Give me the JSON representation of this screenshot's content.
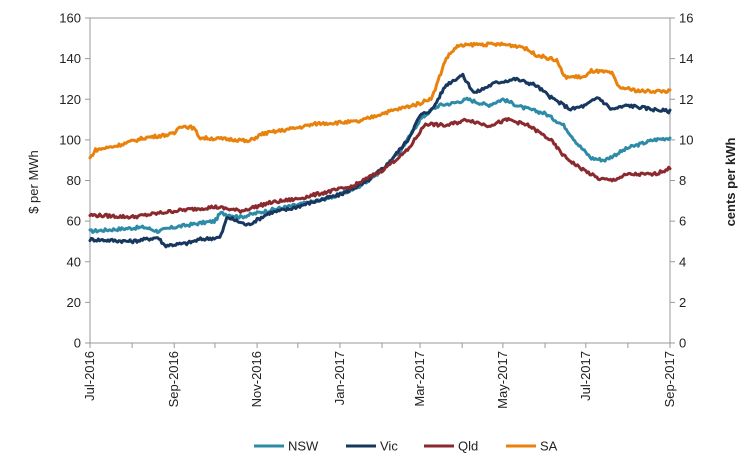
{
  "chart_data": {
    "type": "line",
    "title": "",
    "ylabel": "$ per MWh",
    "y2label": "cents per kWh",
    "ylim": [
      0,
      160
    ],
    "y2lim": [
      0,
      16
    ],
    "yticks": [
      "0",
      "20",
      "40",
      "60",
      "80",
      "100",
      "120",
      "140",
      "160"
    ],
    "y2ticks": [
      "0",
      "2",
      "4",
      "6",
      "8",
      "10",
      "12",
      "14",
      "16"
    ],
    "xticks": [
      "Jul-2016",
      "Sep-2016",
      "Nov-2016",
      "Jan-2017",
      "Mar-2017",
      "May-2017",
      "Jul-2017",
      "Sep-2017"
    ],
    "xlim": [
      "2016-07-01",
      "2017-09-01"
    ],
    "grid": false,
    "legend_position": "bottom",
    "series": [
      {
        "name": "NSW",
        "color": "#2E8BA8",
        "points": [
          [
            "2016-07-01",
            55
          ],
          [
            "2016-07-20",
            56
          ],
          [
            "2016-08-10",
            57
          ],
          [
            "2016-08-20",
            55
          ],
          [
            "2016-09-01",
            57
          ],
          [
            "2016-09-20",
            59
          ],
          [
            "2016-10-01",
            60
          ],
          [
            "2016-10-05",
            64
          ],
          [
            "2016-10-20",
            62
          ],
          [
            "2016-11-01",
            64
          ],
          [
            "2016-11-15",
            66
          ],
          [
            "2016-12-01",
            68
          ],
          [
            "2016-12-15",
            70
          ],
          [
            "2017-01-01",
            73
          ],
          [
            "2017-01-15",
            77
          ],
          [
            "2017-02-01",
            85
          ],
          [
            "2017-02-15",
            95
          ],
          [
            "2017-03-01",
            110
          ],
          [
            "2017-03-10",
            115
          ],
          [
            "2017-03-15",
            117
          ],
          [
            "2017-03-25",
            118
          ],
          [
            "2017-04-05",
            120
          ],
          [
            "2017-04-20",
            117
          ],
          [
            "2017-05-01",
            120
          ],
          [
            "2017-05-15",
            116
          ],
          [
            "2017-06-01",
            113
          ],
          [
            "2017-06-15",
            107
          ],
          [
            "2017-06-25",
            98
          ],
          [
            "2017-07-05",
            91
          ],
          [
            "2017-07-15",
            90
          ],
          [
            "2017-08-01",
            96
          ],
          [
            "2017-08-20",
            100
          ],
          [
            "2017-09-01",
            101
          ]
        ]
      },
      {
        "name": "Vic",
        "color": "#17375E",
        "points": [
          [
            "2016-07-01",
            51
          ],
          [
            "2016-08-01",
            50
          ],
          [
            "2016-08-20",
            52
          ],
          [
            "2016-08-25",
            48
          ],
          [
            "2016-09-10",
            49
          ],
          [
            "2016-09-20",
            51
          ],
          [
            "2016-10-05",
            52
          ],
          [
            "2016-10-10",
            62
          ],
          [
            "2016-10-25",
            58
          ],
          [
            "2016-11-10",
            64
          ],
          [
            "2016-11-25",
            66
          ],
          [
            "2016-12-10",
            69
          ],
          [
            "2017-01-01",
            73
          ],
          [
            "2017-01-20",
            79
          ],
          [
            "2017-02-05",
            88
          ],
          [
            "2017-02-20",
            100
          ],
          [
            "2017-03-01",
            112
          ],
          [
            "2017-03-10",
            115
          ],
          [
            "2017-03-20",
            127
          ],
          [
            "2017-04-01",
            132
          ],
          [
            "2017-04-10",
            123
          ],
          [
            "2017-04-25",
            128
          ],
          [
            "2017-05-10",
            130
          ],
          [
            "2017-05-25",
            127
          ],
          [
            "2017-06-05",
            121
          ],
          [
            "2017-06-20",
            115
          ],
          [
            "2017-07-01",
            117
          ],
          [
            "2017-07-10",
            121
          ],
          [
            "2017-07-20",
            115
          ],
          [
            "2017-08-01",
            117
          ],
          [
            "2017-08-20",
            115
          ],
          [
            "2017-09-01",
            114
          ]
        ]
      },
      {
        "name": "Qld",
        "color": "#8B2A2E",
        "points": [
          [
            "2016-07-01",
            63
          ],
          [
            "2016-08-01",
            62
          ],
          [
            "2016-09-01",
            65
          ],
          [
            "2016-10-01",
            67
          ],
          [
            "2016-10-20",
            65
          ],
          [
            "2016-11-10",
            69
          ],
          [
            "2016-12-01",
            71
          ],
          [
            "2016-12-20",
            74
          ],
          [
            "2017-01-10",
            77
          ],
          [
            "2017-02-01",
            85
          ],
          [
            "2017-02-20",
            95
          ],
          [
            "2017-03-05",
            108
          ],
          [
            "2017-03-20",
            107
          ],
          [
            "2017-04-05",
            110
          ],
          [
            "2017-04-20",
            107
          ],
          [
            "2017-05-05",
            110
          ],
          [
            "2017-05-20",
            107
          ],
          [
            "2017-06-05",
            100
          ],
          [
            "2017-06-15",
            92
          ],
          [
            "2017-06-25",
            87
          ],
          [
            "2017-07-10",
            81
          ],
          [
            "2017-07-20",
            80
          ],
          [
            "2017-08-01",
            83
          ],
          [
            "2017-08-20",
            83
          ],
          [
            "2017-09-01",
            86
          ]
        ]
      },
      {
        "name": "SA",
        "color": "#E8820C",
        "points": [
          [
            "2016-07-01",
            91
          ],
          [
            "2016-07-05",
            95
          ],
          [
            "2016-07-20",
            97
          ],
          [
            "2016-08-10",
            101
          ],
          [
            "2016-09-01",
            103
          ],
          [
            "2016-09-05",
            107
          ],
          [
            "2016-09-15",
            106
          ],
          [
            "2016-09-20",
            101
          ],
          [
            "2016-10-20",
            100
          ],
          [
            "2016-10-25",
            99
          ],
          [
            "2016-11-05",
            103
          ],
          [
            "2016-12-01",
            106
          ],
          [
            "2016-12-15",
            108
          ],
          [
            "2017-01-15",
            109
          ],
          [
            "2017-02-01",
            113
          ],
          [
            "2017-03-01",
            118
          ],
          [
            "2017-03-10",
            121
          ],
          [
            "2017-03-20",
            140
          ],
          [
            "2017-03-28",
            146
          ],
          [
            "2017-04-10",
            147
          ],
          [
            "2017-05-01",
            147
          ],
          [
            "2017-05-15",
            146
          ],
          [
            "2017-05-25",
            142
          ],
          [
            "2017-06-10",
            139
          ],
          [
            "2017-06-15",
            131
          ],
          [
            "2017-07-01",
            131
          ],
          [
            "2017-07-05",
            134
          ],
          [
            "2017-07-20",
            133
          ],
          [
            "2017-07-25",
            126
          ],
          [
            "2017-08-10",
            124
          ],
          [
            "2017-09-01",
            124
          ]
        ]
      }
    ]
  }
}
